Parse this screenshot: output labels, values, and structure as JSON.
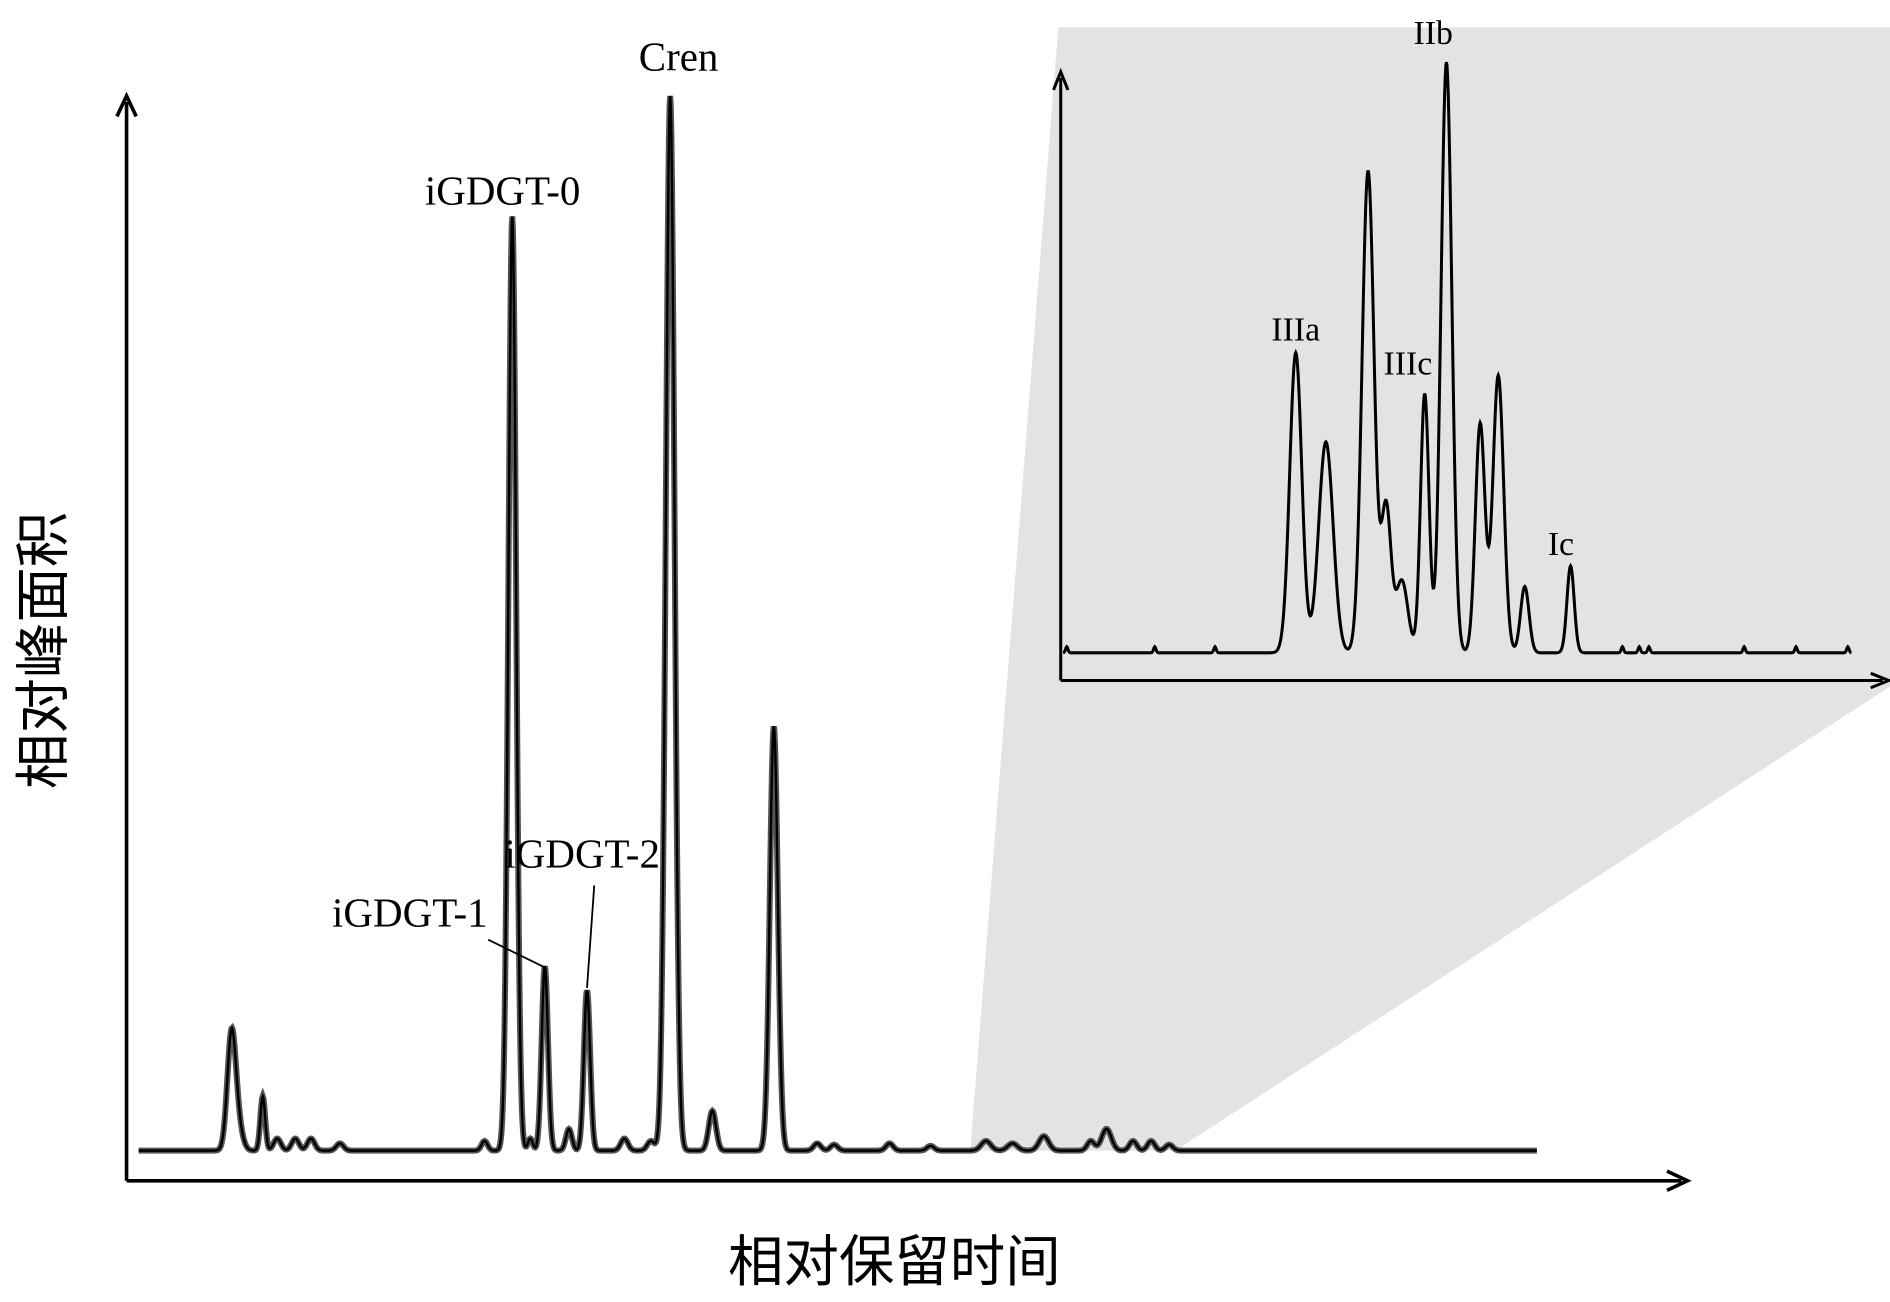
{
  "axes": {
    "x_label": "相对保留时间",
    "y_label": "相对峰面积"
  },
  "peaks": {
    "main": [
      "iGDGT-0",
      "iGDGT-1",
      "iGDGT-2",
      "Cren"
    ],
    "inset": [
      "IIIa",
      "IIIc",
      "IIb",
      "Ic"
    ]
  }
}
